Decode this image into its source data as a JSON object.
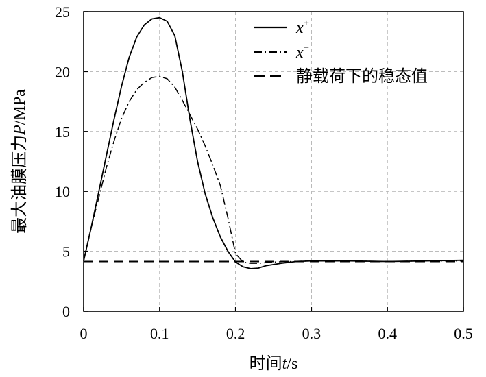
{
  "chart_data": {
    "type": "line",
    "xlabel": {
      "prefix": "时间",
      "var": "t",
      "suffix": "/s"
    },
    "ylabel": {
      "prefix": "最大油膜压力",
      "var": "P",
      "suffix": "/MPa"
    },
    "xlim": [
      0,
      0.5
    ],
    "ylim": [
      0,
      25
    ],
    "xticks": [
      0,
      0.1,
      0.2,
      0.3,
      0.4,
      0.5
    ],
    "xtick_labels": [
      "0",
      "0.1",
      "0.2",
      "0.3",
      "0.4",
      "0.5"
    ],
    "yticks": [
      0,
      5,
      10,
      15,
      20,
      25
    ],
    "ytick_labels": [
      "0",
      "5",
      "10",
      "15",
      "20",
      "25"
    ],
    "grid": true,
    "legend_position": "top-right",
    "series": [
      {
        "name": "x",
        "name_sup": "+",
        "style": "solid",
        "color": "#000000",
        "points": [
          [
            0,
            4.2
          ],
          [
            0.01,
            7.0
          ],
          [
            0.02,
            10.0
          ],
          [
            0.03,
            13.0
          ],
          [
            0.04,
            16.0
          ],
          [
            0.05,
            18.8
          ],
          [
            0.06,
            21.2
          ],
          [
            0.07,
            22.9
          ],
          [
            0.08,
            23.9
          ],
          [
            0.09,
            24.4
          ],
          [
            0.1,
            24.5
          ],
          [
            0.11,
            24.2
          ],
          [
            0.12,
            23.0
          ],
          [
            0.13,
            20.0
          ],
          [
            0.14,
            16.0
          ],
          [
            0.15,
            12.5
          ],
          [
            0.16,
            9.8
          ],
          [
            0.17,
            7.8
          ],
          [
            0.18,
            6.2
          ],
          [
            0.19,
            5.0
          ],
          [
            0.2,
            4.1
          ],
          [
            0.21,
            3.7
          ],
          [
            0.22,
            3.55
          ],
          [
            0.23,
            3.6
          ],
          [
            0.24,
            3.8
          ],
          [
            0.26,
            4.0
          ],
          [
            0.28,
            4.15
          ],
          [
            0.3,
            4.2
          ],
          [
            0.35,
            4.2
          ],
          [
            0.4,
            4.15
          ],
          [
            0.45,
            4.2
          ],
          [
            0.5,
            4.25
          ]
        ]
      },
      {
        "name": "x",
        "name_sup": "−",
        "style": "dashdot",
        "color": "#000000",
        "points": [
          [
            0,
            4.2
          ],
          [
            0.01,
            7.0
          ],
          [
            0.02,
            9.5
          ],
          [
            0.03,
            12.0
          ],
          [
            0.04,
            14.2
          ],
          [
            0.05,
            16.1
          ],
          [
            0.06,
            17.5
          ],
          [
            0.07,
            18.5
          ],
          [
            0.08,
            19.1
          ],
          [
            0.09,
            19.5
          ],
          [
            0.1,
            19.6
          ],
          [
            0.11,
            19.4
          ],
          [
            0.12,
            18.7
          ],
          [
            0.13,
            17.6
          ],
          [
            0.14,
            16.4
          ],
          [
            0.15,
            15.2
          ],
          [
            0.16,
            13.8
          ],
          [
            0.17,
            12.2
          ],
          [
            0.18,
            10.5
          ],
          [
            0.19,
            7.8
          ],
          [
            0.2,
            4.8
          ],
          [
            0.21,
            4.1
          ],
          [
            0.22,
            4.0
          ],
          [
            0.23,
            4.0
          ],
          [
            0.25,
            4.1
          ],
          [
            0.3,
            4.2
          ],
          [
            0.35,
            4.2
          ],
          [
            0.4,
            4.15
          ],
          [
            0.45,
            4.2
          ],
          [
            0.5,
            4.2
          ]
        ]
      },
      {
        "name": "静载荷下的稳态值",
        "style": "dashed",
        "color": "#000000",
        "points": [
          [
            0,
            4.15
          ],
          [
            0.5,
            4.15
          ]
        ]
      }
    ]
  }
}
